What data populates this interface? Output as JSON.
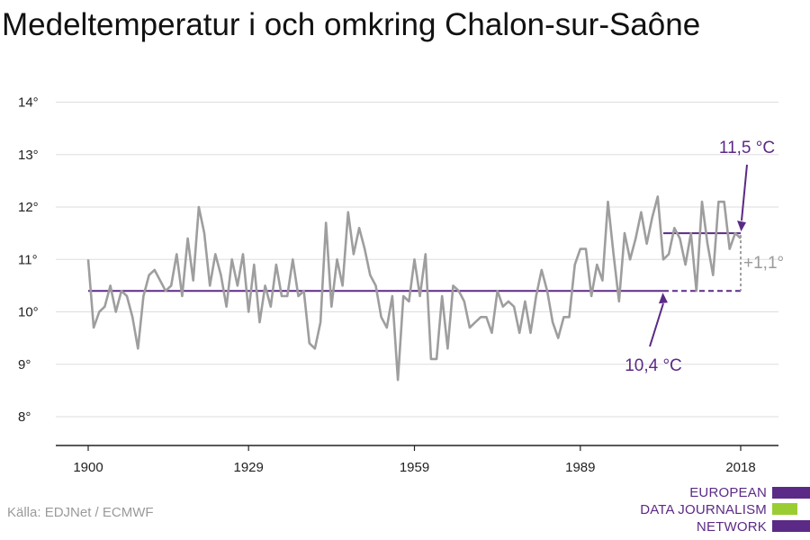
{
  "title": "Medeltemperatur i och omkring Chalon-sur-Saône",
  "source": "Källa: EDJNet / ECMWF",
  "logo": {
    "line1": "EUROPEAN",
    "line2": "DATA JOURNALISM",
    "line3": "NETWORK",
    "colors": [
      "#5b2a86",
      "#9acd32",
      "#5b2a86"
    ]
  },
  "colors": {
    "series": "#9e9e9e",
    "average": "#5b2a86",
    "grid": "#dddddd",
    "axis": "#222222"
  },
  "chart_data": {
    "type": "line",
    "title": "Medeltemperatur i och omkring Chalon-sur-Saône",
    "xlabel": "",
    "ylabel": "",
    "xlim": [
      1900,
      2018
    ],
    "ylim": [
      7.5,
      14.5
    ],
    "xticks": [
      1900,
      1929,
      1959,
      1989,
      2018
    ],
    "xtick_labels": [
      "1900",
      "1929",
      "1959",
      "1989",
      "2018"
    ],
    "yticks": [
      8,
      9,
      10,
      11,
      12,
      13,
      14
    ],
    "ytick_labels": [
      "8°",
      "9°",
      "10°",
      "11°",
      "12°",
      "13°",
      "14°"
    ],
    "grid": "horizontal",
    "x": [
      1900,
      1901,
      1902,
      1903,
      1904,
      1905,
      1906,
      1907,
      1908,
      1909,
      1910,
      1911,
      1912,
      1913,
      1914,
      1915,
      1916,
      1917,
      1918,
      1919,
      1920,
      1921,
      1922,
      1923,
      1924,
      1925,
      1926,
      1927,
      1928,
      1929,
      1930,
      1931,
      1932,
      1933,
      1934,
      1935,
      1936,
      1937,
      1938,
      1939,
      1940,
      1941,
      1942,
      1943,
      1944,
      1945,
      1946,
      1947,
      1948,
      1949,
      1950,
      1951,
      1952,
      1953,
      1954,
      1955,
      1956,
      1957,
      1958,
      1959,
      1960,
      1961,
      1962,
      1963,
      1964,
      1965,
      1966,
      1967,
      1968,
      1969,
      1970,
      1971,
      1972,
      1973,
      1974,
      1975,
      1976,
      1977,
      1978,
      1979,
      1980,
      1981,
      1982,
      1983,
      1984,
      1985,
      1986,
      1987,
      1988,
      1989,
      1990,
      1991,
      1992,
      1993,
      1994,
      1995,
      1996,
      1997,
      1998,
      1999,
      2000,
      2001,
      2002,
      2003,
      2004,
      2005,
      2006,
      2007,
      2008,
      2009,
      2010,
      2011,
      2012,
      2013,
      2014,
      2015,
      2016,
      2017,
      2018
    ],
    "series": [
      {
        "values": [
          11.0,
          9.7,
          10.0,
          10.1,
          10.5,
          10.0,
          10.4,
          10.3,
          9.9,
          9.3,
          10.3,
          10.7,
          10.8,
          10.6,
          10.4,
          10.5,
          11.1,
          10.3,
          11.4,
          10.6,
          12.0,
          11.5,
          10.5,
          11.1,
          10.7,
          10.1,
          11.0,
          10.5,
          11.1,
          10.0,
          10.9,
          9.8,
          10.5,
          10.1,
          10.9,
          10.3,
          10.3,
          11.0,
          10.3,
          10.4,
          9.4,
          9.3,
          9.8,
          11.7,
          10.1,
          11.0,
          10.5,
          11.9,
          11.1,
          11.6,
          11.2,
          10.7,
          10.5,
          9.9,
          9.7,
          10.3,
          8.7,
          10.3,
          10.2,
          11.0,
          10.3,
          11.1,
          9.1,
          9.1,
          10.3,
          9.3,
          10.5,
          10.4,
          10.2,
          9.7,
          9.8,
          9.9,
          9.9,
          9.6,
          10.4,
          10.1,
          10.2,
          10.1,
          9.6,
          10.2,
          9.6,
          10.3,
          10.8,
          10.4,
          9.8,
          9.5,
          9.9,
          9.9,
          10.9,
          11.2,
          11.2,
          10.3,
          10.9,
          10.6,
          12.1,
          11.1,
          10.2,
          11.5,
          11.0,
          11.4,
          11.9,
          11.3,
          11.8,
          12.2,
          11.0,
          11.1,
          11.6,
          11.4,
          10.9,
          11.5,
          10.4,
          12.1,
          11.3,
          10.7,
          12.1,
          12.1,
          11.2,
          11.5,
          11.4
        ]
      }
    ],
    "averages": [
      {
        "x": [
          1900,
          2004
        ],
        "y": 10.4,
        "style": "solid"
      },
      {
        "x": [
          2004,
          2018
        ],
        "y": 10.4,
        "style": "dashed"
      },
      {
        "x": [
          2004,
          2018
        ],
        "y": 11.5,
        "style": "solid"
      }
    ],
    "annotations": [
      {
        "text": "11,5 °C",
        "x": 2018,
        "y": 11.5
      },
      {
        "text": "10,4 °C",
        "x": 2004,
        "y": 10.4
      },
      {
        "text": "+1,1°",
        "x": 2018,
        "y": 10.95
      }
    ]
  }
}
